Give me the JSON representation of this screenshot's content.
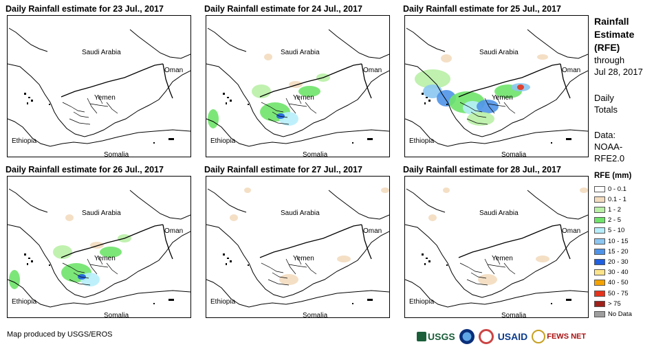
{
  "panels": [
    {
      "title": "Daily Rainfall estimate for 23 Jul., 2017",
      "rain_level": "none"
    },
    {
      "title": "Daily Rainfall estimate for 24 Jul., 2017",
      "rain_level": "moderate"
    },
    {
      "title": "Daily Rainfall estimate for 25 Jul., 2017",
      "rain_level": "heavy"
    },
    {
      "title": "Daily Rainfall estimate for 26 Jul., 2017",
      "rain_level": "moderate"
    },
    {
      "title": "Daily Rainfall estimate for 27 Jul., 2017",
      "rain_level": "light"
    },
    {
      "title": "Daily Rainfall estimate for 28 Jul., 2017",
      "rain_level": "light"
    }
  ],
  "map_labels": {
    "saudi_arabia": "Saudi Arabia",
    "oman": "Oman",
    "yemen": "Yemen",
    "ethiopia": "Ethiopia",
    "somalia": "Somalia"
  },
  "sidebar": {
    "title_lines": [
      "Rainfall",
      "Estimate",
      "(RFE)"
    ],
    "through_lines": [
      "through",
      "Jul 28, 2017"
    ],
    "totals_lines": [
      "Daily",
      "Totals"
    ],
    "data_lines": [
      "Data:",
      "NOAA-",
      "RFE2.0"
    ]
  },
  "legend": {
    "title": "RFE (mm)",
    "items": [
      {
        "label": "0 - 0.1",
        "color": "#ffffff"
      },
      {
        "label": "0.1 - 1",
        "color": "#f3dcbf"
      },
      {
        "label": "1 - 2",
        "color": "#b9f0a6"
      },
      {
        "label": "2 - 5",
        "color": "#6fe36a"
      },
      {
        "label": "5 - 10",
        "color": "#b7eefb"
      },
      {
        "label": "10 - 15",
        "color": "#8cc6f1"
      },
      {
        "label": "15 - 20",
        "color": "#4f93e8"
      },
      {
        "label": "20 - 30",
        "color": "#1f5fe0"
      },
      {
        "label": "30 - 40",
        "color": "#fbe48a"
      },
      {
        "label": "40 - 50",
        "color": "#f5a300"
      },
      {
        "label": "50 - 75",
        "color": "#e8331c"
      },
      {
        "label": "> 75",
        "color": "#a0201a"
      },
      {
        "label": "No Data",
        "color": "#9e9e9e"
      }
    ]
  },
  "credit": "Map produced by USGS/EROS",
  "logos": {
    "usgs": "USGS",
    "usaid": "USAID",
    "fews": "FEWS NET"
  }
}
